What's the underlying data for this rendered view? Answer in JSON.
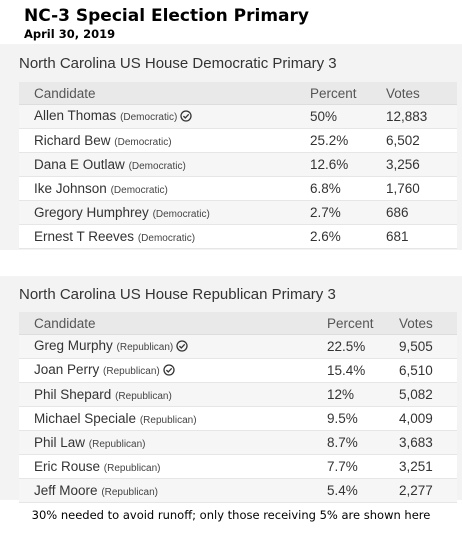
{
  "header": {
    "title": "NC-3 Special Election Primary",
    "date": "April 30, 2019"
  },
  "columns": {
    "candidate": "Candidate",
    "percent": "Percent",
    "votes": "Votes"
  },
  "races": [
    {
      "title": "North Carolina US House Democratic Primary 3",
      "rows": [
        {
          "name": "Allen Thomas",
          "party": "(Democratic)",
          "percent": "50%",
          "votes": "12,883",
          "advanced": true
        },
        {
          "name": "Richard Bew",
          "party": "(Democratic)",
          "percent": "25.2%",
          "votes": "6,502",
          "advanced": false
        },
        {
          "name": "Dana E Outlaw",
          "party": "(Democratic)",
          "percent": "12.6%",
          "votes": "3,256",
          "advanced": false
        },
        {
          "name": "Ike Johnson",
          "party": "(Democratic)",
          "percent": "6.8%",
          "votes": "1,760",
          "advanced": false
        },
        {
          "name": "Gregory Humphrey",
          "party": "(Democratic)",
          "percent": "2.7%",
          "votes": "686",
          "advanced": false
        },
        {
          "name": "Ernest T Reeves",
          "party": "(Democratic)",
          "percent": "2.6%",
          "votes": "681",
          "advanced": false
        }
      ]
    },
    {
      "title": "North Carolina US House Republican Primary 3",
      "rows": [
        {
          "name": "Greg Murphy",
          "party": "(Republican)",
          "percent": "22.5%",
          "votes": "9,505",
          "advanced": true
        },
        {
          "name": "Joan Perry",
          "party": "(Republican)",
          "percent": "15.4%",
          "votes": "6,510",
          "advanced": true
        },
        {
          "name": "Phil Shepard",
          "party": "(Republican)",
          "percent": "12%",
          "votes": "5,082",
          "advanced": false
        },
        {
          "name": "Michael Speciale",
          "party": "(Republican)",
          "percent": "9.5%",
          "votes": "4,009",
          "advanced": false
        },
        {
          "name": "Phil Law",
          "party": "(Republican)",
          "percent": "8.7%",
          "votes": "3,683",
          "advanced": false
        },
        {
          "name": "Eric Rouse",
          "party": "(Republican)",
          "percent": "7.7%",
          "votes": "3,251",
          "advanced": false
        },
        {
          "name": "Jeff Moore",
          "party": "(Republican)",
          "percent": "5.4%",
          "votes": "2,277",
          "advanced": false
        }
      ]
    }
  ],
  "footnote": "30% needed to avoid runoff; only those receiving 5% are shown here",
  "icons": {
    "advanced": "check-circle-icon"
  }
}
